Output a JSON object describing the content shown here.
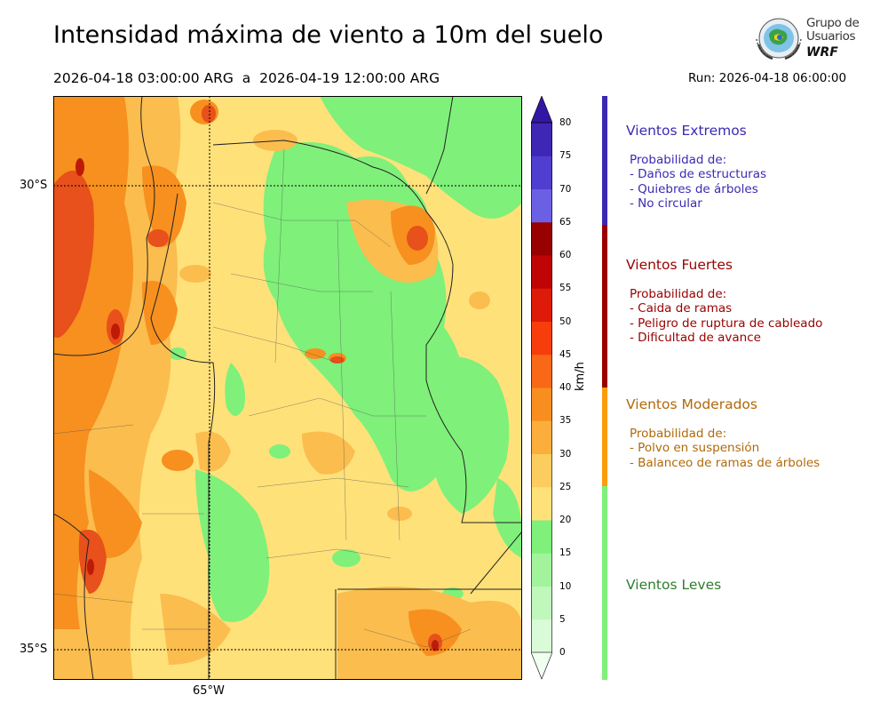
{
  "header": {
    "title": "Intensidad máxima de viento a 10m del suelo",
    "period_start": "2026-04-18 03:00:00 ARG",
    "period_sep": "a",
    "period_end": "2026-04-19 12:00:00 ARG",
    "run": "Run: 2026-04-18 06:00:00"
  },
  "logo": {
    "line1": "Grupo de",
    "line2": "Usuarios",
    "line3": "WRF",
    "icon": "globe-emblem-icon"
  },
  "map": {
    "lat_labels": [
      "30°S",
      "35°S"
    ],
    "lon_labels": [
      "65°W"
    ],
    "fill_palette": {
      "low": "#ffe17a",
      "mid": "#fbbd4e",
      "high": "#f7901e",
      "extreme": "#e8501c",
      "calm": "#7ff07a"
    }
  },
  "colorbar": {
    "unit": "km/h",
    "ticks": [
      "0",
      "5",
      "10",
      "15",
      "20",
      "25",
      "30",
      "35",
      "40",
      "45",
      "50",
      "55",
      "60",
      "65",
      "70",
      "75",
      "80"
    ],
    "colors": [
      "#f0fff0",
      "#dafbd7",
      "#c0f7bb",
      "#a3f39c",
      "#7ff07a",
      "#ffe17a",
      "#fdcc5e",
      "#fbae3c",
      "#f98e20",
      "#f86816",
      "#f83d0d",
      "#de1a08",
      "#be0405",
      "#990000",
      "#6b60e4",
      "#4f3ed0",
      "#3f27b6",
      "#3217a5"
    ]
  },
  "categories": [
    {
      "title": "Vientos Extremos",
      "color": "#3a2ab3",
      "lines": [
        "Probabilidad de:",
        "- Daños de estructuras",
        "- Quiebres de árboles",
        "- No circular"
      ]
    },
    {
      "title": "Vientos Fuertes",
      "color": "#990000",
      "lines": [
        "Probabilidad de:",
        "- Caida de ramas",
        "- Peligro de ruptura de cableado",
        "- Dificultad de avance"
      ]
    },
    {
      "title": "Vientos Moderados",
      "color": "#b0690a",
      "bar_color": "#fb9c0c",
      "lines": [
        "Probabilidad de:",
        "- Polvo en suspensión",
        "- Balanceo de ramas de árboles"
      ]
    },
    {
      "title": "Vientos Leves",
      "color": "#2e7d2e",
      "bar_color": "#7ff07a",
      "lines": []
    }
  ]
}
